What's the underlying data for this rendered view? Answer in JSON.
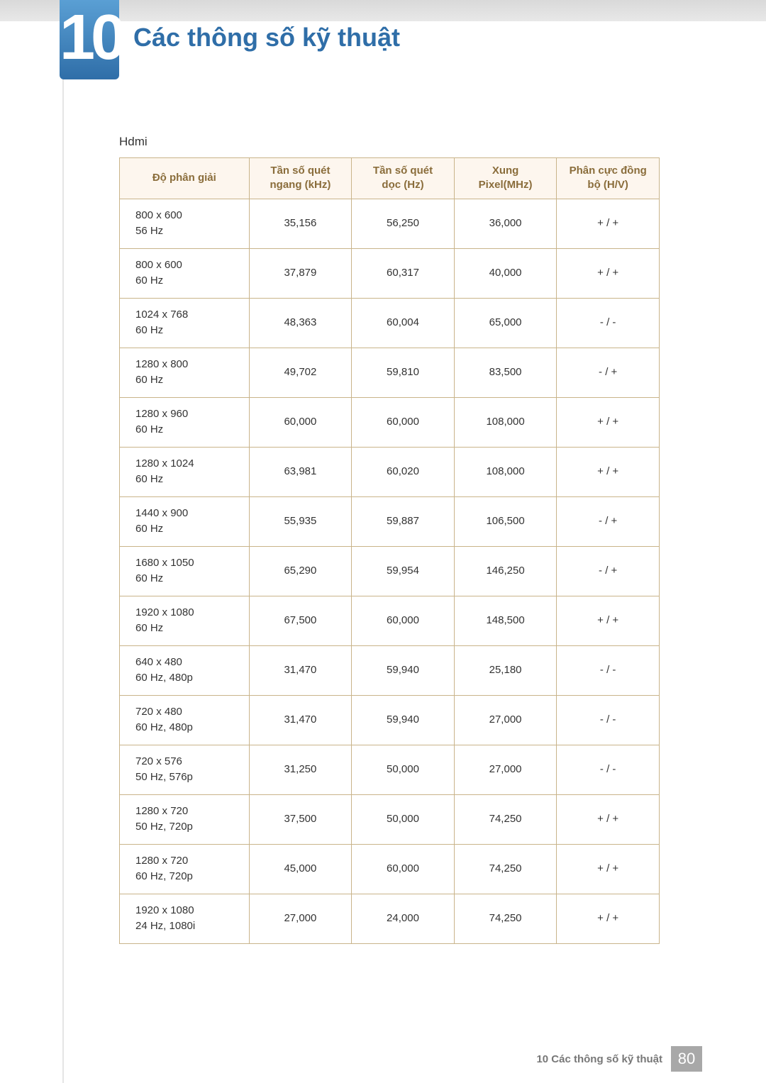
{
  "chapter": {
    "number": "10",
    "title": "Các thông số kỹ thuật"
  },
  "section_label": "Hdmi",
  "table": {
    "headers": [
      "Độ phân giải",
      "Tần số quét ngang (kHz)",
      "Tần số quét dọc (Hz)",
      "Xung Pixel(MHz)",
      "Phân cực đồng bộ (H/V)"
    ],
    "header_lines": [
      [
        "Độ phân giải"
      ],
      [
        "Tần số quét",
        "ngang (kHz)"
      ],
      [
        "Tần số quét",
        "dọc (Hz)"
      ],
      [
        "Xung",
        "Pixel(MHz)"
      ],
      [
        "Phân cực đồng",
        "bộ (H/V)"
      ]
    ],
    "col_widths": [
      "24%",
      "19%",
      "19%",
      "19%",
      "19%"
    ],
    "rows": [
      {
        "res": [
          "800 x 600",
          "56 Hz"
        ],
        "h": "35,156",
        "v": "56,250",
        "px": "36,000",
        "pol": "+ / +"
      },
      {
        "res": [
          "800 x 600",
          "60 Hz"
        ],
        "h": "37,879",
        "v": "60,317",
        "px": "40,000",
        "pol": "+ / +"
      },
      {
        "res": [
          "1024 x 768",
          "60 Hz"
        ],
        "h": "48,363",
        "v": "60,004",
        "px": "65,000",
        "pol": "- / -"
      },
      {
        "res": [
          "1280 x 800",
          "60 Hz"
        ],
        "h": "49,702",
        "v": "59,810",
        "px": "83,500",
        "pol": "- / +"
      },
      {
        "res": [
          "1280 x 960",
          "60 Hz"
        ],
        "h": "60,000",
        "v": "60,000",
        "px": "108,000",
        "pol": "+ / +"
      },
      {
        "res": [
          "1280 x 1024",
          "60 Hz"
        ],
        "h": "63,981",
        "v": "60,020",
        "px": "108,000",
        "pol": "+ / +"
      },
      {
        "res": [
          "1440 x 900",
          "60 Hz"
        ],
        "h": "55,935",
        "v": "59,887",
        "px": "106,500",
        "pol": "- / +"
      },
      {
        "res": [
          "1680 x 1050",
          "60 Hz"
        ],
        "h": "65,290",
        "v": "59,954",
        "px": "146,250",
        "pol": "- / +"
      },
      {
        "res": [
          "1920 x 1080",
          "60 Hz"
        ],
        "h": "67,500",
        "v": "60,000",
        "px": "148,500",
        "pol": "+ / +"
      },
      {
        "res": [
          "640 x 480",
          "60 Hz, 480p"
        ],
        "h": "31,470",
        "v": "59,940",
        "px": "25,180",
        "pol": "- / -"
      },
      {
        "res": [
          "720 x 480",
          "60 Hz, 480p"
        ],
        "h": "31,470",
        "v": "59,940",
        "px": "27,000",
        "pol": "- / -"
      },
      {
        "res": [
          "720 x 576",
          "50 Hz, 576p"
        ],
        "h": "31,250",
        "v": "50,000",
        "px": "27,000",
        "pol": "- / -"
      },
      {
        "res": [
          "1280 x 720",
          "50 Hz, 720p"
        ],
        "h": "37,500",
        "v": "50,000",
        "px": "74,250",
        "pol": "+ / +"
      },
      {
        "res": [
          "1280 x 720",
          "60 Hz, 720p"
        ],
        "h": "45,000",
        "v": "60,000",
        "px": "74,250",
        "pol": "+ / +"
      },
      {
        "res": [
          "1920 x 1080",
          "24 Hz, 1080i"
        ],
        "h": "27,000",
        "v": "24,000",
        "px": "74,250",
        "pol": "+ / +"
      }
    ]
  },
  "footer": {
    "text": "10 Các thông số kỹ thuật",
    "page": "80"
  },
  "colors": {
    "accent_blue": "#2f6ea8",
    "table_border": "#8a6d3b",
    "table_header_bg": "#fdf6ee",
    "cell_border": "#c9b48a",
    "footer_badge": "#a8a8a8"
  }
}
